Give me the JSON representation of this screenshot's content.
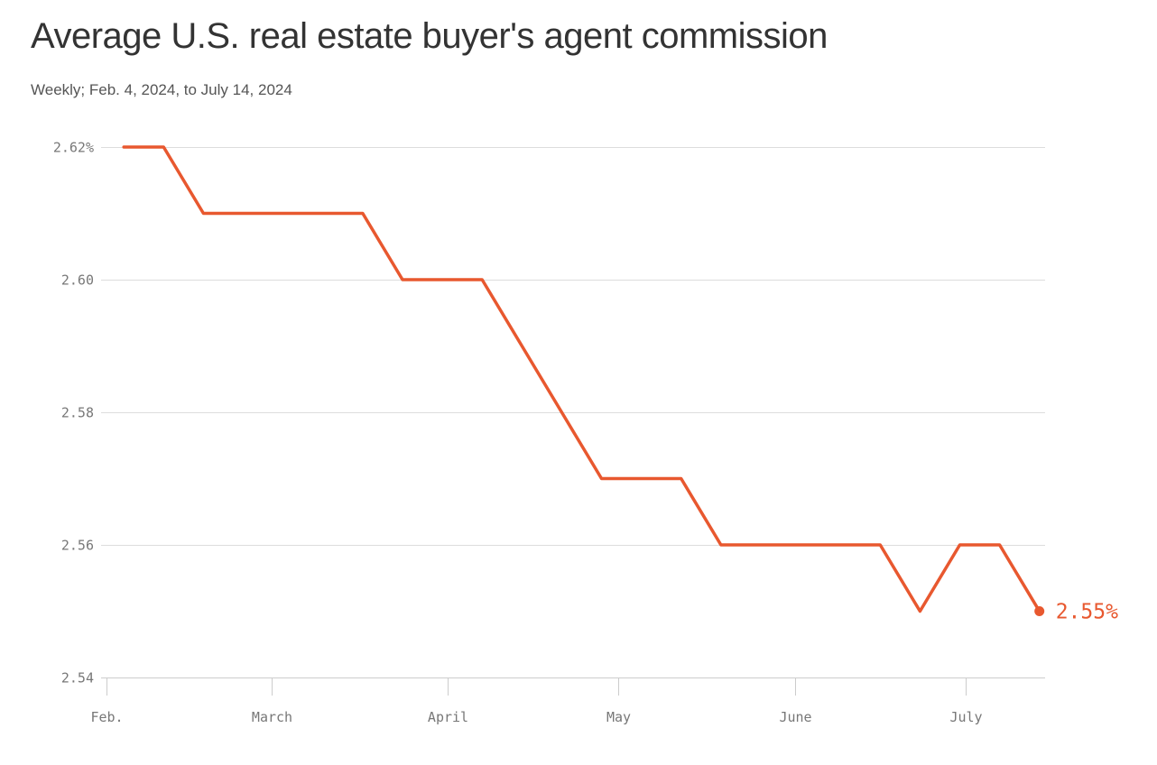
{
  "title": "Average U.S. real estate buyer's agent commission",
  "subtitle": "Weekly; Feb. 4, 2024, to July 14, 2024",
  "colors": {
    "line": "#e8582f",
    "grid": "#dddddd",
    "axis": "#cccccc",
    "tick_text": "#777777"
  },
  "chart_data": {
    "type": "line",
    "title": "Average U.S. real estate buyer's agent commission",
    "subtitle": "Weekly; Feb. 4, 2024, to July 14, 2024",
    "xlabel": "",
    "ylabel": "",
    "ylim": [
      2.54,
      2.62
    ],
    "xlim": [
      "2024-01-31",
      "2024-07-15"
    ],
    "grid": true,
    "y_ticks": [
      {
        "value": 2.62,
        "label": "2.62%"
      },
      {
        "value": 2.6,
        "label": "2.60"
      },
      {
        "value": 2.58,
        "label": "2.58"
      },
      {
        "value": 2.56,
        "label": "2.56"
      },
      {
        "value": 2.54,
        "label": "2.54"
      }
    ],
    "x_ticks": [
      {
        "date": "2024-02-01",
        "label": "Feb."
      },
      {
        "date": "2024-03-01",
        "label": "March"
      },
      {
        "date": "2024-04-01",
        "label": "April"
      },
      {
        "date": "2024-05-01",
        "label": "May"
      },
      {
        "date": "2024-06-01",
        "label": "June"
      },
      {
        "date": "2024-07-01",
        "label": "July"
      }
    ],
    "series": [
      {
        "x": [
          "2024-02-04",
          "2024-02-11",
          "2024-02-18",
          "2024-02-25",
          "2024-03-03",
          "2024-03-10",
          "2024-03-17",
          "2024-03-24",
          "2024-03-31",
          "2024-04-07",
          "2024-04-14",
          "2024-04-21",
          "2024-04-28",
          "2024-05-05",
          "2024-05-12",
          "2024-05-19",
          "2024-05-26",
          "2024-06-02",
          "2024-06-09",
          "2024-06-16",
          "2024-06-23",
          "2024-06-30",
          "2024-07-07",
          "2024-07-14"
        ],
        "values": [
          2.62,
          2.62,
          2.61,
          2.61,
          2.61,
          2.61,
          2.61,
          2.6,
          2.6,
          2.6,
          2.59,
          2.58,
          2.57,
          2.57,
          2.57,
          2.56,
          2.56,
          2.56,
          2.56,
          2.56,
          2.55,
          2.56,
          2.56,
          2.55
        ],
        "end_label": "2.55%"
      }
    ]
  }
}
